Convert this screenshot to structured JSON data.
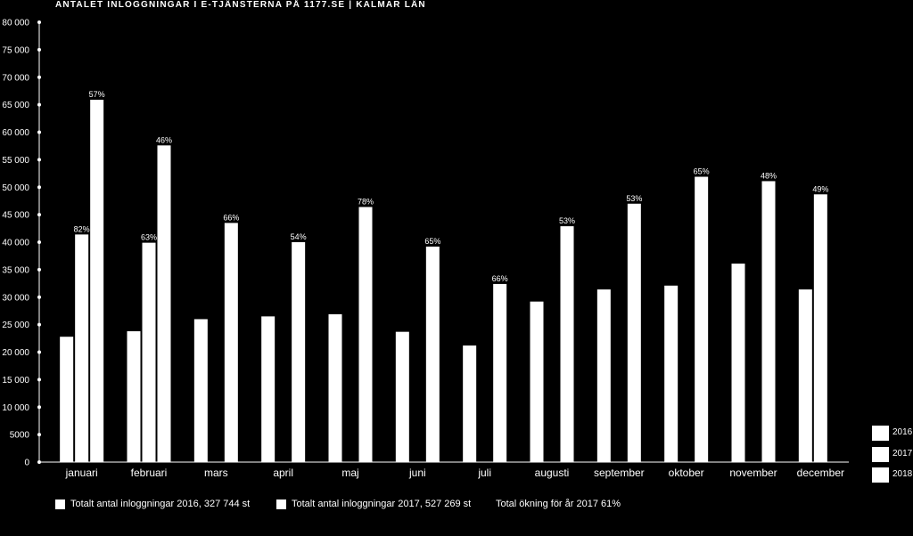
{
  "chart_data": {
    "type": "bar",
    "title": "ANTALET INLOGGNINGAR I E-TJÄNSTERNA PÅ 1177.SE  |  KALMAR LÄN",
    "categories": [
      "januari",
      "februari",
      "mars",
      "april",
      "maj",
      "juni",
      "juli",
      "augusti",
      "september",
      "oktober",
      "november",
      "december"
    ],
    "series": [
      {
        "name": "2016",
        "values": [
          22800,
          23800,
          26000,
          26500,
          26900,
          23700,
          21200,
          29200,
          31400,
          32100,
          36100,
          31400
        ]
      },
      {
        "name": "2017",
        "values": [
          41400,
          39900,
          null,
          null,
          null,
          null,
          null,
          null,
          null,
          null,
          null,
          48700
        ]
      },
      {
        "name": "2018",
        "values": [
          65900,
          57600,
          43500,
          40000,
          46400,
          39200,
          32400,
          42900,
          47000,
          51900,
          51100,
          null
        ]
      }
    ],
    "percent_labels": [
      {
        "category": "januari",
        "series": "2017",
        "text": "82%"
      },
      {
        "category": "januari",
        "series": "2018",
        "text": "57%"
      },
      {
        "category": "februari",
        "series": "2017",
        "text": "63%"
      },
      {
        "category": "februari",
        "series": "2018",
        "text": "46%"
      },
      {
        "category": "mars",
        "series": "2018",
        "text": "66%"
      },
      {
        "category": "april",
        "series": "2018",
        "text": "54%"
      },
      {
        "category": "maj",
        "series": "2018",
        "text": "78%"
      },
      {
        "category": "juni",
        "series": "2018",
        "text": "65%"
      },
      {
        "category": "juli",
        "series": "2018",
        "text": "66%"
      },
      {
        "category": "augusti",
        "series": "2018",
        "text": "53%"
      },
      {
        "category": "september",
        "series": "2018",
        "text": "53%"
      },
      {
        "category": "oktober",
        "series": "2018",
        "text": "65%"
      },
      {
        "category": "november",
        "series": "2018",
        "text": "48%"
      },
      {
        "category": "december",
        "series": "2017",
        "text": "49%"
      }
    ],
    "yticks": [
      "0",
      "5000",
      "10 000",
      "15 000",
      "20 000",
      "25 000",
      "30 000",
      "35 000",
      "40 000",
      "45 000",
      "50 000",
      "55 000",
      "60 000",
      "65 000",
      "70 000",
      "75 000",
      "80 000"
    ],
    "ylim": [
      0,
      80000
    ],
    "xlabel": "",
    "ylabel": "",
    "grid": false,
    "legend": [
      "2016",
      "2017",
      "2018"
    ],
    "legend_position": "bottom-right",
    "colors": {
      "background": "#000000",
      "bars": "#ffffff",
      "text": "#ffffff"
    }
  },
  "footer": {
    "total_2016": "Totalt antal inloggningar 2016, 327 744 st",
    "total_2017": "Totalt antal inloggningar 2017, 527 269 st",
    "increase": "Total ökning för år 2017 61%"
  }
}
